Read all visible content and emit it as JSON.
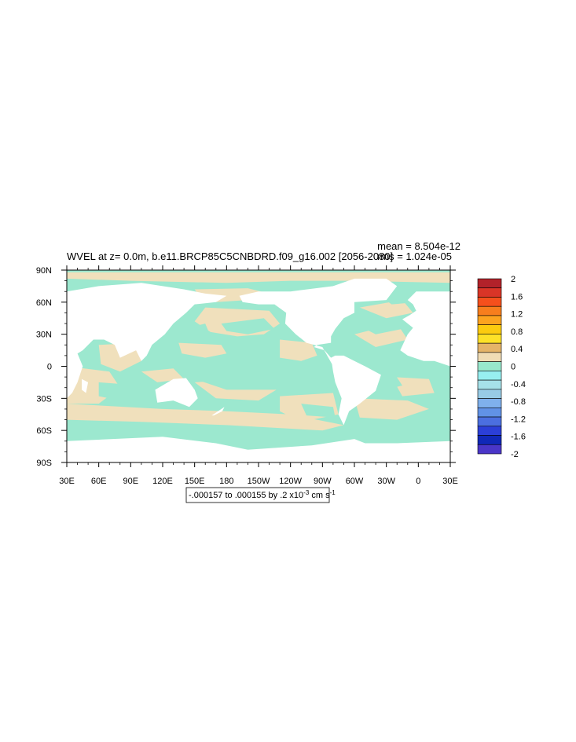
{
  "chart_data": {
    "type": "heatmap",
    "title": "WVEL at z=   0.0m, b.e11.BRCP85C5CNBDRD.f09_g16.002 [2056-2080]",
    "stats": {
      "mean": "mean = 8.504e-12",
      "rms": "rms = 1.024e-05"
    },
    "contour_info": {
      "text": "-.000157 to .000155 by .2 x10",
      "exp": "-3",
      "unit": " cm s",
      "unit_exp": "-1"
    },
    "xlim": [
      30,
      390
    ],
    "ylim": [
      -90,
      90
    ],
    "x_ticks": [
      {
        "lon": 30,
        "label": "30E"
      },
      {
        "lon": 60,
        "label": "60E"
      },
      {
        "lon": 90,
        "label": "90E"
      },
      {
        "lon": 120,
        "label": "120E"
      },
      {
        "lon": 150,
        "label": "150E"
      },
      {
        "lon": 180,
        "label": "180"
      },
      {
        "lon": 210,
        "label": "150W"
      },
      {
        "lon": 240,
        "label": "120W"
      },
      {
        "lon": 270,
        "label": "90W"
      },
      {
        "lon": 300,
        "label": "60W"
      },
      {
        "lon": 330,
        "label": "30W"
      },
      {
        "lon": 360,
        "label": "0"
      },
      {
        "lon": 390,
        "label": "30E"
      }
    ],
    "y_ticks": [
      {
        "lat": 90,
        "label": "90N"
      },
      {
        "lat": 60,
        "label": "60N"
      },
      {
        "lat": 30,
        "label": "30N"
      },
      {
        "lat": 0,
        "label": "0"
      },
      {
        "lat": -30,
        "label": "30S"
      },
      {
        "lat": -60,
        "label": "60S"
      },
      {
        "lat": -90,
        "label": "90S"
      }
    ],
    "colorbar": {
      "labels": [
        "2",
        "1.6",
        "1.2",
        "0.8",
        "0.4",
        "0",
        "-0.4",
        "-0.8",
        "-1.2",
        "-1.6",
        "-2"
      ],
      "colors": [
        "#b2222a",
        "#d93527",
        "#f5501c",
        "#f77e1d",
        "#fca31f",
        "#fccb0f",
        "#fde128",
        "#e5b468",
        "#f0dcb4",
        "#98e8cc",
        "#97eff0",
        "#a6e1e9",
        "#98cbe5",
        "#7fb0ec",
        "#6192e6",
        "#4b6fe0",
        "#2b3fd8",
        "#1028b8",
        "#4a36c8"
      ]
    },
    "fields": {
      "positive_color": "#f0e0bc",
      "negative_color": "#9ce8cf",
      "positive_regions": [
        [
          [
            30,
            88
          ],
          [
            390,
            88
          ],
          [
            390,
            78
          ],
          [
            300,
            80
          ],
          [
            240,
            80
          ],
          [
            180,
            78
          ],
          [
            90,
            80
          ],
          [
            30,
            82
          ]
        ],
        [
          [
            150,
            72
          ],
          [
            200,
            73
          ],
          [
            220,
            68
          ],
          [
            200,
            62
          ],
          [
            170,
            60
          ],
          [
            155,
            65
          ]
        ],
        [
          [
            160,
            55
          ],
          [
            220,
            52
          ],
          [
            230,
            40
          ],
          [
            215,
            30
          ],
          [
            190,
            28
          ],
          [
            165,
            32
          ],
          [
            150,
            42
          ]
        ],
        [
          [
            230,
            25
          ],
          [
            260,
            22
          ],
          [
            265,
            10
          ],
          [
            250,
            5
          ],
          [
            230,
            8
          ]
        ],
        [
          [
            135,
            22
          ],
          [
            175,
            20
          ],
          [
            180,
            12
          ],
          [
            160,
            8
          ],
          [
            138,
            12
          ]
        ],
        [
          [
            60,
            20
          ],
          [
            95,
            22
          ],
          [
            100,
            5
          ],
          [
            80,
            -5
          ],
          [
            62,
            2
          ]
        ],
        [
          [
            30,
            0
          ],
          [
            70,
            -5
          ],
          [
            80,
            -20
          ],
          [
            60,
            -35
          ],
          [
            30,
            -35
          ]
        ],
        [
          [
            100,
            -5
          ],
          [
            130,
            -2
          ],
          [
            140,
            -12
          ],
          [
            115,
            -15
          ]
        ],
        [
          [
            150,
            -15
          ],
          [
            200,
            -12
          ],
          [
            230,
            -20
          ],
          [
            210,
            -32
          ],
          [
            170,
            -30
          ]
        ],
        [
          [
            230,
            -28
          ],
          [
            280,
            -25
          ],
          [
            285,
            -45
          ],
          [
            250,
            -52
          ],
          [
            230,
            -42
          ]
        ],
        [
          [
            30,
            -35
          ],
          [
            120,
            -40
          ],
          [
            180,
            -42
          ],
          [
            240,
            -45
          ],
          [
            290,
            -55
          ],
          [
            270,
            -60
          ],
          [
            180,
            -55
          ],
          [
            100,
            -52
          ],
          [
            30,
            -50
          ]
        ],
        [
          [
            300,
            -30
          ],
          [
            350,
            -32
          ],
          [
            370,
            -40
          ],
          [
            340,
            -50
          ],
          [
            305,
            -48
          ]
        ],
        [
          [
            335,
            -10
          ],
          [
            370,
            -12
          ],
          [
            375,
            -25
          ],
          [
            345,
            -28
          ]
        ],
        [
          [
            300,
            30
          ],
          [
            340,
            40
          ],
          [
            350,
            25
          ],
          [
            320,
            18
          ]
        ],
        [
          [
            305,
            55
          ],
          [
            345,
            62
          ],
          [
            355,
            50
          ],
          [
            330,
            45
          ]
        ]
      ],
      "negative_regions": [
        [
          [
            30,
            -52
          ],
          [
            150,
            -55
          ],
          [
            230,
            -60
          ],
          [
            290,
            -62
          ],
          [
            300,
            -58
          ],
          [
            370,
            -56
          ],
          [
            390,
            -54
          ],
          [
            390,
            -70
          ],
          [
            300,
            -70
          ],
          [
            260,
            -74
          ],
          [
            200,
            -74
          ],
          [
            150,
            -70
          ],
          [
            60,
            -68
          ],
          [
            30,
            -68
          ]
        ],
        [
          [
            60,
            -15
          ],
          [
            100,
            -18
          ],
          [
            110,
            -30
          ],
          [
            80,
            -32
          ],
          [
            60,
            -28
          ]
        ],
        [
          [
            150,
            -5
          ],
          [
            240,
            -8
          ],
          [
            270,
            -10
          ],
          [
            275,
            -20
          ],
          [
            240,
            -22
          ],
          [
            180,
            -22
          ],
          [
            150,
            -12
          ]
        ],
        [
          [
            175,
            40
          ],
          [
            215,
            45
          ],
          [
            225,
            35
          ],
          [
            200,
            30
          ],
          [
            180,
            33
          ]
        ],
        [
          [
            140,
            35
          ],
          [
            160,
            40
          ],
          [
            165,
            28
          ],
          [
            145,
            26
          ]
        ],
        [
          [
            305,
            -5
          ],
          [
            335,
            -3
          ],
          [
            345,
            -18
          ],
          [
            315,
            -25
          ],
          [
            300,
            -15
          ]
        ],
        [
          [
            310,
            35
          ],
          [
            340,
            45
          ],
          [
            345,
            35
          ],
          [
            320,
            30
          ]
        ],
        [
          [
            325,
            65
          ],
          [
            350,
            70
          ],
          [
            360,
            60
          ],
          [
            335,
            58
          ]
        ],
        [
          [
            30,
            68
          ],
          [
            60,
            72
          ],
          [
            80,
            68
          ],
          [
            50,
            64
          ]
        ],
        [
          [
            250,
            -35
          ],
          [
            280,
            -38
          ],
          [
            282,
            -48
          ],
          [
            255,
            -46
          ]
        ]
      ],
      "land_polygons": [
        [
          [
            30,
            70
          ],
          [
            60,
            75
          ],
          [
            100,
            78
          ],
          [
            140,
            72
          ],
          [
            160,
            68
          ],
          [
            180,
            66
          ],
          [
            170,
            60
          ],
          [
            150,
            58
          ],
          [
            142,
            50
          ],
          [
            130,
            40
          ],
          [
            122,
            30
          ],
          [
            110,
            20
          ],
          [
            105,
            10
          ],
          [
            100,
            5
          ],
          [
            95,
            15
          ],
          [
            80,
            8
          ],
          [
            75,
            20
          ],
          [
            65,
            25
          ],
          [
            55,
            25
          ],
          [
            45,
            15
          ],
          [
            40,
            12
          ],
          [
            45,
            0
          ],
          [
            40,
            -15
          ],
          [
            35,
            -25
          ],
          [
            30,
            -30
          ]
        ],
        [
          [
            113,
            -22
          ],
          [
            130,
            -12
          ],
          [
            142,
            -11
          ],
          [
            150,
            -22
          ],
          [
            153,
            -30
          ],
          [
            145,
            -38
          ],
          [
            130,
            -32
          ],
          [
            115,
            -34
          ]
        ],
        [
          [
            166,
            -46
          ],
          [
            178,
            -38
          ],
          [
            176,
            -42
          ],
          [
            168,
            -46
          ]
        ],
        [
          [
            192,
            66
          ],
          [
            210,
            70
          ],
          [
            240,
            70
          ],
          [
            280,
            75
          ],
          [
            300,
            82
          ],
          [
            330,
            82
          ],
          [
            340,
            75
          ],
          [
            330,
            62
          ],
          [
            300,
            60
          ],
          [
            300,
            50
          ],
          [
            290,
            45
          ],
          [
            282,
            35
          ],
          [
            278,
            28
          ],
          [
            278,
            22
          ],
          [
            265,
            20
          ],
          [
            262,
            18
          ],
          [
            272,
            15
          ],
          [
            278,
            8
          ],
          [
            282,
            10
          ],
          [
            290,
            10
          ],
          [
            300,
            5
          ],
          [
            310,
            0
          ],
          [
            325,
            -8
          ],
          [
            320,
            -23
          ],
          [
            305,
            -35
          ],
          [
            295,
            -42
          ],
          [
            290,
            -55
          ],
          [
            285,
            -45
          ],
          [
            288,
            -30
          ],
          [
            282,
            -15
          ],
          [
            280,
            -5
          ],
          [
            279,
            2
          ],
          [
            270,
            18
          ],
          [
            255,
            22
          ],
          [
            245,
            30
          ],
          [
            235,
            40
          ],
          [
            236,
            50
          ],
          [
            225,
            58
          ],
          [
            210,
            58
          ],
          [
            195,
            60
          ]
        ],
        [
          [
            345,
            44
          ],
          [
            352,
            48
          ],
          [
            358,
            52
          ],
          [
            355,
            58
          ],
          [
            350,
            62
          ],
          [
            358,
            70
          ],
          [
            370,
            70
          ],
          [
            390,
            70
          ],
          [
            390,
            0
          ],
          [
            375,
            5
          ],
          [
            365,
            5
          ],
          [
            350,
            10
          ],
          [
            343,
            15
          ],
          [
            350,
            30
          ],
          [
            355,
            36
          ]
        ],
        [
          [
            44,
            -12
          ],
          [
            50,
            -15
          ],
          [
            48,
            -25
          ],
          [
            44,
            -22
          ]
        ]
      ],
      "antarctica": [
        [
          30,
          -70
        ],
        [
          120,
          -66
        ],
        [
          170,
          -72
        ],
        [
          200,
          -78
        ],
        [
          260,
          -74
        ],
        [
          300,
          -68
        ],
        [
          310,
          -72
        ],
        [
          340,
          -72
        ],
        [
          390,
          -70
        ],
        [
          390,
          -90
        ],
        [
          30,
          -90
        ]
      ]
    }
  }
}
